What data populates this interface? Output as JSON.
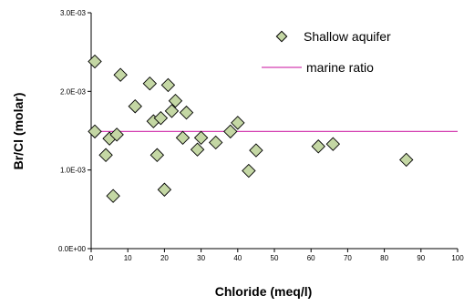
{
  "chart_data": {
    "type": "scatter",
    "xlabel": "Chloride (meq/l)",
    "ylabel": "Br/Cl (molar)",
    "xlim": [
      0,
      100
    ],
    "ylim": [
      0,
      0.003
    ],
    "x_ticks": [
      0,
      10,
      20,
      30,
      40,
      50,
      60,
      70,
      80,
      90,
      100
    ],
    "x_tick_labels": [
      "0",
      "10",
      "20",
      "30",
      "40",
      "50",
      "60",
      "70",
      "80",
      "90",
      "100"
    ],
    "y_ticks": [
      0,
      0.001,
      0.002,
      0.003
    ],
    "y_tick_labels": [
      "0.0E+00",
      "1.0E-03",
      "2.0E-03",
      "3.0E-03"
    ],
    "grid": false,
    "legend_position": "top-right",
    "series": [
      {
        "name": "Shallow aquifer",
        "marker": "diamond",
        "color": "#c4d7a4",
        "edge_color": "#000000",
        "points": [
          [
            1,
            0.00238
          ],
          [
            1,
            0.00149
          ],
          [
            4,
            0.00119
          ],
          [
            5,
            0.0014
          ],
          [
            6,
            0.00067
          ],
          [
            7,
            0.00145
          ],
          [
            8,
            0.00221
          ],
          [
            12,
            0.00181
          ],
          [
            16,
            0.0021
          ],
          [
            17,
            0.00162
          ],
          [
            18,
            0.00119
          ],
          [
            19,
            0.00166
          ],
          [
            20,
            0.00075
          ],
          [
            21,
            0.00208
          ],
          [
            22,
            0.00175
          ],
          [
            23,
            0.00188
          ],
          [
            25,
            0.00141
          ],
          [
            26,
            0.00173
          ],
          [
            29,
            0.00126
          ],
          [
            30,
            0.00141
          ],
          [
            34,
            0.00135
          ],
          [
            38,
            0.00149
          ],
          [
            40,
            0.0016
          ],
          [
            43,
            0.00099
          ],
          [
            45,
            0.00125
          ],
          [
            62,
            0.0013
          ],
          [
            66,
            0.00133
          ],
          [
            86,
            0.00113
          ]
        ]
      },
      {
        "name": "marine ratio",
        "type": "line",
        "color": "#d33fb1",
        "value": 0.00149
      }
    ]
  }
}
